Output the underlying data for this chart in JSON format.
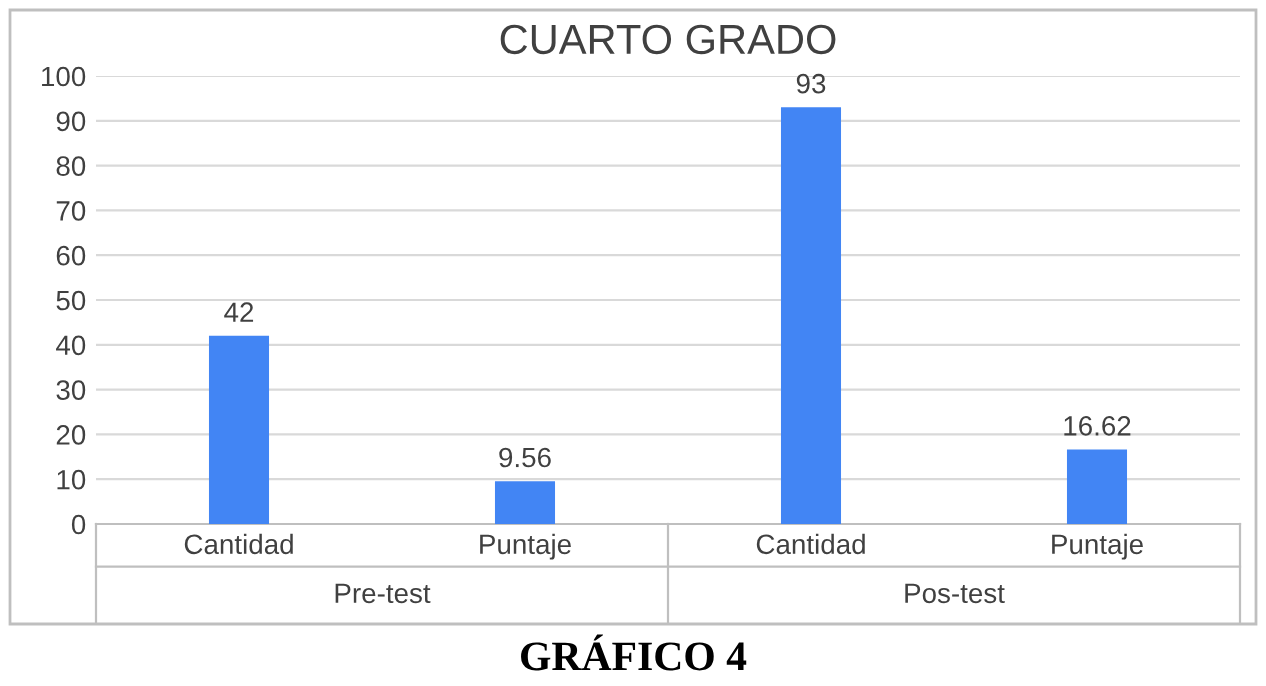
{
  "chart_data": {
    "type": "bar",
    "title": "CUARTO GRADO",
    "categories": [
      "Cantidad",
      "Puntaje",
      "Cantidad",
      "Puntaje"
    ],
    "values": [
      42,
      9.56,
      93,
      16.62
    ],
    "color": "#4285f4",
    "ylim": [
      0,
      100
    ],
    "yticks": [
      0,
      10,
      20,
      30,
      40,
      50,
      60,
      70,
      80,
      90,
      100
    ],
    "grid": "y",
    "data_labels": true,
    "annotations": [
      "Pre-test",
      "Pos-test",
      "GRÁFICO 4"
    ]
  }
}
